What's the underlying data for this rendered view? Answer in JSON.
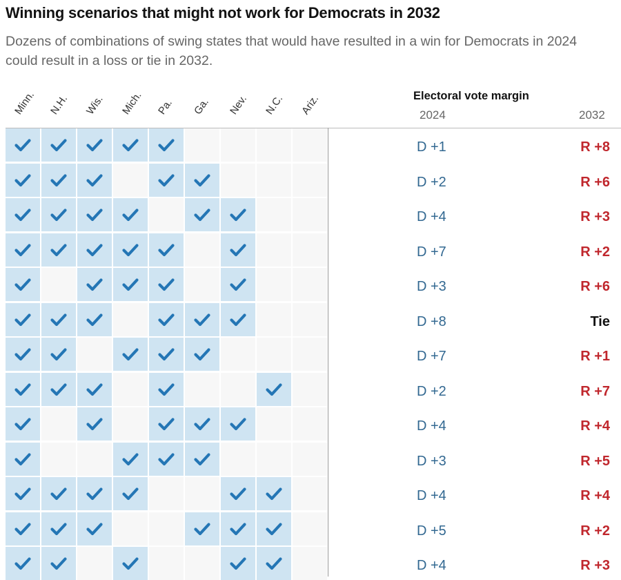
{
  "title": "Winning scenarios that might not work for Democrats in 2032",
  "subtitle": "Dozens of combinations of swing states that would have resulted in a win for Democrats in 2024 could result in a loss or tie in 2032.",
  "colors": {
    "check": "#2476b5",
    "cell_on": "#cfe4f2",
    "cell_off": "#f7f7f7",
    "dem": "#326891",
    "rep": "#c0272d"
  },
  "chart_data": {
    "type": "table",
    "states": [
      "Minn.",
      "N.H.",
      "Wis.",
      "Mich.",
      "Pa.",
      "Ga.",
      "Nev.",
      "N.C.",
      "Ariz."
    ],
    "column_header": "Electoral vote margin",
    "year_labels": [
      "2024",
      "2032"
    ],
    "rows": [
      {
        "states_won": [
          1,
          1,
          1,
          1,
          1,
          0,
          0,
          0,
          0
        ],
        "margin_2024": "D +1",
        "margin_2032": "R +8"
      },
      {
        "states_won": [
          1,
          1,
          1,
          0,
          1,
          1,
          0,
          0,
          0
        ],
        "margin_2024": "D +2",
        "margin_2032": "R +6"
      },
      {
        "states_won": [
          1,
          1,
          1,
          1,
          0,
          1,
          1,
          0,
          0
        ],
        "margin_2024": "D +4",
        "margin_2032": "R +3"
      },
      {
        "states_won": [
          1,
          1,
          1,
          1,
          1,
          0,
          1,
          0,
          0
        ],
        "margin_2024": "D +7",
        "margin_2032": "R +2"
      },
      {
        "states_won": [
          1,
          0,
          1,
          1,
          1,
          0,
          1,
          0,
          0
        ],
        "margin_2024": "D +3",
        "margin_2032": "R +6"
      },
      {
        "states_won": [
          1,
          1,
          1,
          0,
          1,
          1,
          1,
          0,
          0
        ],
        "margin_2024": "D +8",
        "margin_2032": "Tie"
      },
      {
        "states_won": [
          1,
          1,
          0,
          1,
          1,
          1,
          0,
          0,
          0
        ],
        "margin_2024": "D +7",
        "margin_2032": "R +1"
      },
      {
        "states_won": [
          1,
          1,
          1,
          0,
          1,
          0,
          0,
          1,
          0
        ],
        "margin_2024": "D +2",
        "margin_2032": "R +7"
      },
      {
        "states_won": [
          1,
          0,
          1,
          0,
          1,
          1,
          1,
          0,
          0
        ],
        "margin_2024": "D +4",
        "margin_2032": "R +4"
      },
      {
        "states_won": [
          1,
          0,
          0,
          1,
          1,
          1,
          0,
          0,
          0
        ],
        "margin_2024": "D +3",
        "margin_2032": "R +5"
      },
      {
        "states_won": [
          1,
          1,
          1,
          1,
          0,
          0,
          1,
          1,
          0
        ],
        "margin_2024": "D +4",
        "margin_2032": "R +4"
      },
      {
        "states_won": [
          1,
          1,
          1,
          0,
          0,
          1,
          1,
          1,
          0
        ],
        "margin_2024": "D +5",
        "margin_2032": "R +2"
      },
      {
        "states_won": [
          1,
          1,
          0,
          1,
          0,
          0,
          1,
          1,
          0
        ],
        "margin_2024": "D +4",
        "margin_2032": "R +3"
      }
    ]
  }
}
